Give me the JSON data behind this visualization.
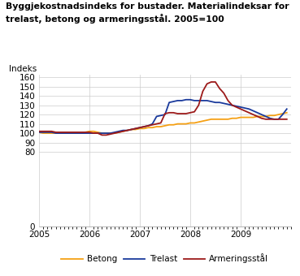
{
  "title_line1": "Byggjekostnadsindeks for bustader. Materialindeksar for",
  "title_line2": "trelast, betong og armeringsstål. 2005=100",
  "ylabel": "Indeks",
  "ylim": [
    0,
    163
  ],
  "yticks": [
    0,
    80,
    90,
    100,
    110,
    120,
    130,
    140,
    150,
    160
  ],
  "xlim": [
    2005,
    2010.0
  ],
  "xticks": [
    2005,
    2006,
    2007,
    2008,
    2009
  ],
  "colors": {
    "betong": "#f5a014",
    "trelast": "#1a3a9c",
    "armeringsstål": "#9c1a1a"
  },
  "legend": [
    "Betong",
    "Trelast",
    "Armeringsstål"
  ],
  "betong_y": [
    101,
    100,
    100,
    100,
    100,
    100,
    100,
    100,
    100,
    100,
    100,
    101,
    102,
    102,
    101,
    100,
    100,
    100,
    100,
    101,
    102,
    103,
    104,
    104,
    105,
    105,
    106,
    106,
    107,
    107,
    108,
    109,
    109,
    110,
    110,
    110,
    111,
    111,
    112,
    113,
    114,
    115,
    115,
    115,
    115,
    115,
    116,
    116,
    117,
    117,
    117,
    117,
    118,
    118,
    118,
    119,
    119,
    120,
    121,
    122
  ],
  "trelast_y": [
    101,
    101,
    101,
    101,
    100,
    100,
    100,
    100,
    100,
    100,
    100,
    100,
    100,
    100,
    100,
    100,
    100,
    100,
    101,
    102,
    103,
    103,
    104,
    105,
    106,
    107,
    108,
    110,
    118,
    119,
    120,
    133,
    134,
    135,
    135,
    136,
    136,
    135,
    135,
    135,
    135,
    134,
    133,
    133,
    132,
    131,
    130,
    129,
    128,
    127,
    126,
    124,
    122,
    120,
    118,
    116,
    115,
    115,
    120,
    126
  ],
  "armering_y": [
    102,
    102,
    102,
    102,
    101,
    101,
    101,
    101,
    101,
    101,
    101,
    101,
    101,
    100,
    100,
    98,
    98,
    99,
    100,
    101,
    102,
    103,
    104,
    105,
    106,
    107,
    108,
    109,
    110,
    111,
    121,
    122,
    122,
    121,
    121,
    121,
    122,
    123,
    130,
    145,
    153,
    155,
    155,
    148,
    143,
    135,
    130,
    128,
    126,
    124,
    122,
    120,
    118,
    116,
    115,
    115,
    115,
    115,
    115,
    115
  ]
}
